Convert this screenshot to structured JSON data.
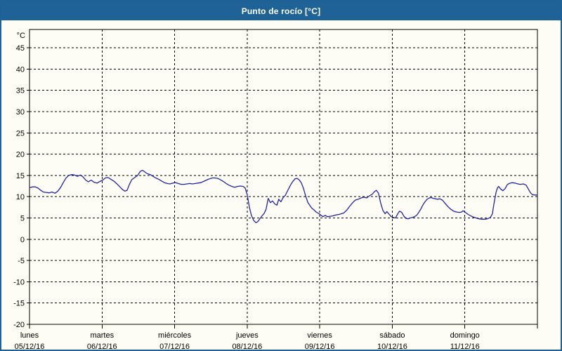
{
  "header": {
    "title": "Punto de rocío [°C]"
  },
  "colors": {
    "header_bg": "#1f6396",
    "window_border": "#1e6196",
    "page_bg": "#fdfdf6",
    "line_color": "#2222aa",
    "grid_color": "#000000"
  },
  "chart_data": {
    "type": "line",
    "title": "Punto de rocío [°C]",
    "y_unit_label": "°C",
    "ylabel": "",
    "xlabel": "",
    "ylim": [
      -20,
      49.3
    ],
    "yticks": [
      45,
      40,
      35,
      30,
      25,
      20,
      15,
      10,
      5,
      0,
      -5,
      -10,
      -15,
      -20
    ],
    "grid": "dashed",
    "legend": "none",
    "x_days": [
      {
        "name": "lunes",
        "date": "05/12/16"
      },
      {
        "name": "martes",
        "date": "06/12/16"
      },
      {
        "name": "miércoles",
        "date": "07/12/16"
      },
      {
        "name": "jueves",
        "date": "08/12/16"
      },
      {
        "name": "viernes",
        "date": "09/12/16"
      },
      {
        "name": "sábado",
        "date": "10/12/16"
      },
      {
        "name": "domingo",
        "date": "11/12/16"
      }
    ],
    "series": [
      {
        "name": "Punto de rocío",
        "x_unit": "days_from_monday",
        "y_unit": "°C",
        "points": [
          [
            0,
            12.1
          ],
          [
            0.04,
            12.3
          ],
          [
            0.08,
            12.3
          ],
          [
            0.12,
            12.0
          ],
          [
            0.155,
            11.5
          ],
          [
            0.19,
            11.1
          ],
          [
            0.23,
            11.0
          ],
          [
            0.27,
            10.9
          ],
          [
            0.31,
            11.1
          ],
          [
            0.35,
            10.8
          ],
          [
            0.39,
            11.3
          ],
          [
            0.43,
            12.2
          ],
          [
            0.465,
            13.3
          ],
          [
            0.5,
            14.3
          ],
          [
            0.54,
            15.0
          ],
          [
            0.58,
            15.2
          ],
          [
            0.62,
            15.1
          ],
          [
            0.66,
            14.8
          ],
          [
            0.7,
            15.1
          ],
          [
            0.735,
            14.7
          ],
          [
            0.775,
            13.9
          ],
          [
            0.81,
            13.5
          ],
          [
            0.85,
            13.9
          ],
          [
            0.89,
            13.4
          ],
          [
            0.93,
            13.2
          ],
          [
            0.97,
            13.6
          ],
          [
            1.01,
            13.9
          ],
          [
            1.045,
            14.4
          ],
          [
            1.085,
            14.5
          ],
          [
            1.12,
            14.1
          ],
          [
            1.16,
            13.7
          ],
          [
            1.2,
            13.1
          ],
          [
            1.24,
            12.4
          ],
          [
            1.28,
            11.7
          ],
          [
            1.315,
            11.3
          ],
          [
            1.345,
            11.5
          ],
          [
            1.375,
            12.8
          ],
          [
            1.41,
            14.0
          ],
          [
            1.45,
            14.5
          ],
          [
            1.49,
            15.0
          ],
          [
            1.53,
            16.0
          ],
          [
            1.56,
            16.2
          ],
          [
            1.59,
            15.8
          ],
          [
            1.625,
            15.4
          ],
          [
            1.665,
            15.2
          ],
          [
            1.7,
            14.8
          ],
          [
            1.74,
            14.4
          ],
          [
            1.78,
            14.1
          ],
          [
            1.82,
            13.7
          ],
          [
            1.86,
            13.3
          ],
          [
            1.9,
            13.1
          ],
          [
            1.935,
            13.0
          ],
          [
            1.975,
            13.2
          ],
          [
            2.015,
            13.3
          ],
          [
            2.05,
            13.1
          ],
          [
            2.09,
            12.9
          ],
          [
            2.13,
            12.9
          ],
          [
            2.17,
            13.0
          ],
          [
            2.21,
            13.1
          ],
          [
            2.245,
            13.0
          ],
          [
            2.285,
            13.1
          ],
          [
            2.32,
            13.2
          ],
          [
            2.36,
            13.3
          ],
          [
            2.4,
            13.6
          ],
          [
            2.44,
            13.9
          ],
          [
            2.48,
            14.2
          ],
          [
            2.52,
            14.4
          ],
          [
            2.555,
            14.4
          ],
          [
            2.595,
            14.3
          ],
          [
            2.63,
            14.0
          ],
          [
            2.67,
            13.6
          ],
          [
            2.71,
            13.1
          ],
          [
            2.75,
            12.7
          ],
          [
            2.79,
            12.4
          ],
          [
            2.83,
            12.2
          ],
          [
            2.865,
            12.4
          ],
          [
            2.905,
            12.5
          ],
          [
            2.945,
            12.4
          ],
          [
            2.97,
            12.1
          ],
          [
            3.0,
            10.5
          ],
          [
            3.03,
            7.5
          ],
          [
            3.06,
            5.5
          ],
          [
            3.09,
            4.4
          ],
          [
            3.12,
            3.9
          ],
          [
            3.145,
            4.1
          ],
          [
            3.175,
            4.8
          ],
          [
            3.205,
            5.5
          ],
          [
            3.235,
            6.1
          ],
          [
            3.26,
            7.0
          ],
          [
            3.29,
            9.6
          ],
          [
            3.32,
            8.6
          ],
          [
            3.35,
            9.0
          ],
          [
            3.38,
            8.3
          ],
          [
            3.41,
            8.0
          ],
          [
            3.435,
            9.4
          ],
          [
            3.465,
            8.8
          ],
          [
            3.495,
            9.8
          ],
          [
            3.525,
            10.3
          ],
          [
            3.56,
            11.5
          ],
          [
            3.6,
            12.8
          ],
          [
            3.63,
            13.6
          ],
          [
            3.66,
            14.2
          ],
          [
            3.69,
            14.3
          ],
          [
            3.72,
            13.9
          ],
          [
            3.745,
            13.3
          ],
          [
            3.775,
            12.0
          ],
          [
            3.805,
            10.2
          ],
          [
            3.835,
            8.7
          ],
          [
            3.865,
            7.9
          ],
          [
            3.89,
            7.3
          ],
          [
            3.92,
            6.9
          ],
          [
            3.95,
            6.4
          ],
          [
            3.99,
            6.0
          ],
          [
            4.02,
            5.6
          ],
          [
            4.045,
            5.3
          ],
          [
            4.075,
            5.6
          ],
          [
            4.105,
            5.3
          ],
          [
            4.145,
            5.4
          ],
          [
            4.18,
            5.5
          ],
          [
            4.22,
            5.7
          ],
          [
            4.26,
            5.8
          ],
          [
            4.3,
            6.0
          ],
          [
            4.335,
            6.2
          ],
          [
            4.375,
            6.9
          ],
          [
            4.415,
            7.8
          ],
          [
            4.455,
            8.6
          ],
          [
            4.49,
            9.2
          ],
          [
            4.53,
            9.4
          ],
          [
            4.57,
            9.7
          ],
          [
            4.61,
            9.9
          ],
          [
            4.645,
            9.7
          ],
          [
            4.685,
            10.2
          ],
          [
            4.725,
            10.6
          ],
          [
            4.755,
            11.2
          ],
          [
            4.78,
            11.5
          ],
          [
            4.81,
            10.8
          ],
          [
            4.84,
            8.5
          ],
          [
            4.87,
            6.8
          ],
          [
            4.9,
            6.0
          ],
          [
            4.925,
            6.5
          ],
          [
            4.955,
            5.9
          ],
          [
            4.985,
            5.3
          ],
          [
            5.015,
            5.1
          ],
          [
            5.045,
            5.0
          ],
          [
            5.075,
            6.0
          ],
          [
            5.1,
            6.6
          ],
          [
            5.13,
            6.3
          ],
          [
            5.16,
            5.4
          ],
          [
            5.19,
            4.9
          ],
          [
            5.22,
            4.8
          ],
          [
            5.245,
            5.0
          ],
          [
            5.275,
            5.1
          ],
          [
            5.305,
            5.3
          ],
          [
            5.335,
            5.6
          ],
          [
            5.36,
            6.2
          ],
          [
            5.39,
            7.0
          ],
          [
            5.42,
            8.0
          ],
          [
            5.45,
            8.8
          ],
          [
            5.48,
            9.4
          ],
          [
            5.51,
            9.7
          ],
          [
            5.535,
            9.8
          ],
          [
            5.565,
            9.6
          ],
          [
            5.595,
            9.5
          ],
          [
            5.625,
            9.4
          ],
          [
            5.655,
            9.5
          ],
          [
            5.69,
            9.2
          ],
          [
            5.73,
            8.4
          ],
          [
            5.77,
            7.6
          ],
          [
            5.81,
            7.0
          ],
          [
            5.845,
            6.6
          ],
          [
            5.885,
            6.4
          ],
          [
            5.925,
            6.3
          ],
          [
            5.955,
            6.4
          ],
          [
            5.975,
            6.7
          ],
          [
            6.0,
            6.4
          ],
          [
            6.04,
            5.9
          ],
          [
            6.08,
            5.5
          ],
          [
            6.12,
            5.2
          ],
          [
            6.155,
            5.0
          ],
          [
            6.195,
            4.8
          ],
          [
            6.235,
            4.7
          ],
          [
            6.275,
            4.7
          ],
          [
            6.31,
            4.8
          ],
          [
            6.35,
            5.1
          ],
          [
            6.38,
            6.0
          ],
          [
            6.39,
            7.2
          ],
          [
            6.41,
            9.2
          ],
          [
            6.43,
            11.0
          ],
          [
            6.45,
            12.1
          ],
          [
            6.465,
            12.4
          ],
          [
            6.495,
            11.8
          ],
          [
            6.525,
            11.4
          ],
          [
            6.555,
            11.9
          ],
          [
            6.585,
            12.8
          ],
          [
            6.61,
            13.1
          ],
          [
            6.65,
            13.3
          ],
          [
            6.69,
            13.2
          ],
          [
            6.73,
            13.0
          ],
          [
            6.765,
            12.9
          ],
          [
            6.805,
            13.0
          ],
          [
            6.845,
            12.7
          ],
          [
            6.875,
            11.8
          ],
          [
            6.905,
            10.9
          ],
          [
            6.93,
            10.5
          ],
          [
            6.96,
            10.4
          ],
          [
            7.0,
            10.4
          ]
        ]
      }
    ]
  }
}
